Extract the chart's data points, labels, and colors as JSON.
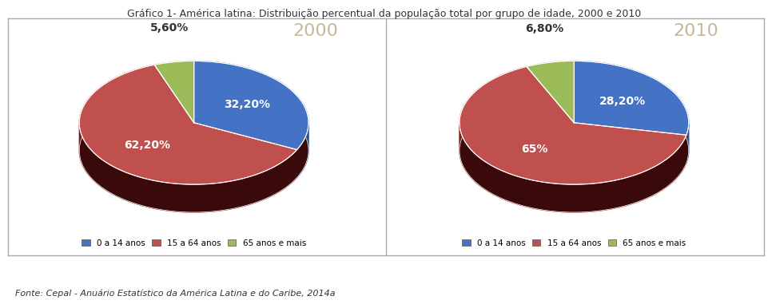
{
  "title": "Gráfico 1- América latina: Distribuição percentual da população total por grupo de idade, 2000 e 2010",
  "title_fontsize": 9,
  "charts": [
    {
      "year": "2000",
      "values": [
        32.2,
        62.2,
        5.6
      ],
      "labels": [
        "32,20%",
        "62,20%",
        "5,60%"
      ],
      "label_outside": [
        false,
        false,
        true
      ],
      "colors": [
        "#4472C4",
        "#C0504D",
        "#9BBB59"
      ],
      "dark_colors": [
        "#2E4E8C",
        "#7B1A1A",
        "#6B8A3A"
      ]
    },
    {
      "year": "2010",
      "values": [
        28.2,
        65.0,
        6.8
      ],
      "labels": [
        "28,20%",
        "65%",
        "6,80%"
      ],
      "label_outside": [
        false,
        false,
        true
      ],
      "colors": [
        "#4472C4",
        "#C0504D",
        "#9BBB59"
      ],
      "dark_colors": [
        "#2E4E8C",
        "#7B1A1A",
        "#6B8A3A"
      ]
    }
  ],
  "legend_labels": [
    "0 a 14 anos",
    "15 a 64 anos",
    "65 anos e mais"
  ],
  "legend_colors": [
    "#4472C4",
    "#C0504D",
    "#9BBB59"
  ],
  "source_text": "Fonte: Cepal - Anuário Estatístico da América Latina e do Caribe, 2014a",
  "year_label_color": "#C8B89A",
  "year_label_fontsize": 16,
  "label_fontsize": 10,
  "background_color": "#FFFFFF",
  "panel_bg": "#FFFFFF"
}
